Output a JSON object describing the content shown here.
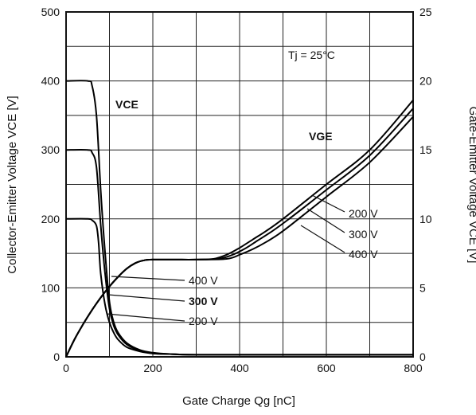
{
  "chart_data": {
    "type": "line",
    "xlabel": "Gate Charge Qg [nC]",
    "ylabel_left": "Collector-Emitter Voltage VCE [V]",
    "ylabel_right": "Gate-Emitter Voltage VCE [V]",
    "xlim": [
      0,
      800
    ],
    "ylim_left": [
      0,
      500
    ],
    "ylim_right": [
      0,
      25
    ],
    "x_ticks": [
      "0",
      "200",
      "400",
      "600",
      "800"
    ],
    "y_left_ticks": [
      "0",
      "100",
      "200",
      "300",
      "400",
      "500"
    ],
    "y_right_ticks": [
      "0",
      "5",
      "10",
      "15",
      "20",
      "25"
    ],
    "grid": true,
    "annotations": {
      "condition": "Tj =  25°C",
      "vce_label": "VCE",
      "vge_label": "VGE",
      "vce_400": "400 V",
      "vce_300": "300 V",
      "vce_200": "200 V",
      "vge_200": "200 V",
      "vge_300": "300 V",
      "vge_400": "400 V"
    },
    "series": [
      {
        "name": "400 V",
        "group": "VCE",
        "axis": "left",
        "x": [
          0,
          50,
          60,
          70,
          80,
          90,
          100,
          110,
          120,
          140,
          170,
          200,
          240,
          300,
          500,
          800
        ],
        "y": [
          400,
          400,
          393,
          350,
          240,
          150,
          80,
          50,
          35,
          20,
          10,
          6,
          4,
          3,
          3,
          3
        ]
      },
      {
        "name": "300 V",
        "group": "VCE",
        "axis": "left",
        "x": [
          0,
          50,
          60,
          70,
          80,
          90,
          100,
          110,
          120,
          140,
          170,
          200,
          240,
          300,
          500,
          800
        ],
        "y": [
          300,
          300,
          296,
          275,
          190,
          120,
          70,
          45,
          32,
          18,
          9,
          5,
          4,
          3,
          3,
          3
        ]
      },
      {
        "name": "200 V",
        "group": "VCE",
        "axis": "left",
        "x": [
          0,
          50,
          60,
          70,
          75,
          80,
          90,
          100,
          110,
          120,
          140,
          170,
          200,
          240,
          300,
          500,
          800
        ],
        "y": [
          200,
          200,
          198,
          190,
          165,
          120,
          75,
          50,
          35,
          25,
          14,
          8,
          5,
          4,
          3,
          3,
          3
        ]
      },
      {
        "name": "200 V",
        "group": "VGE",
        "axis": "right",
        "x": [
          0,
          20,
          40,
          60,
          80,
          100,
          120,
          140,
          160,
          180,
          200,
          250,
          300,
          340,
          370,
          400,
          430,
          460,
          500,
          600,
          700,
          800
        ],
        "y": [
          0,
          1.3,
          2.4,
          3.4,
          4.3,
          5.1,
          5.8,
          6.4,
          6.8,
          7.0,
          7.05,
          7.05,
          7.05,
          7.1,
          7.4,
          7.9,
          8.5,
          9.1,
          10.0,
          12.5,
          15.0,
          18.6
        ]
      },
      {
        "name": "300 V",
        "group": "VGE",
        "axis": "right",
        "x": [
          0,
          20,
          40,
          60,
          80,
          100,
          120,
          140,
          160,
          180,
          200,
          250,
          300,
          350,
          380,
          410,
          440,
          470,
          510,
          600,
          700,
          800
        ],
        "y": [
          0,
          1.3,
          2.4,
          3.4,
          4.3,
          5.1,
          5.8,
          6.4,
          6.8,
          7.0,
          7.05,
          7.05,
          7.05,
          7.1,
          7.35,
          7.8,
          8.4,
          9.0,
          9.9,
          12.1,
          14.6,
          18.0
        ]
      },
      {
        "name": "400 V",
        "group": "VGE",
        "axis": "right",
        "x": [
          0,
          20,
          40,
          60,
          80,
          100,
          120,
          140,
          160,
          180,
          200,
          250,
          300,
          370,
          400,
          430,
          460,
          490,
          520,
          600,
          700,
          800
        ],
        "y": [
          0,
          1.3,
          2.4,
          3.4,
          4.3,
          5.1,
          5.8,
          6.4,
          6.8,
          7.0,
          7.05,
          7.05,
          7.05,
          7.1,
          7.4,
          7.8,
          8.3,
          8.9,
          9.6,
          11.6,
          14.1,
          17.4
        ]
      }
    ]
  }
}
